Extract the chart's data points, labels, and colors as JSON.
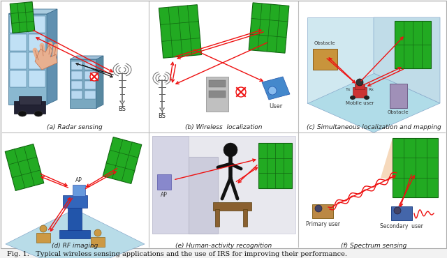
{
  "caption": "Fig. 1.   Typical wireless sensing applications and the use of IRS for improving their performance.",
  "subfig_labels": [
    "(a) Radar sensing",
    "(b) Wireless  localization",
    "(c) Simultaneous localization and mapping",
    "(d) RF imaging",
    "(e) Human-activity recognition",
    "(f) Spectrum sensing"
  ],
  "bg_color": "#f2f2f2",
  "white": "#ffffff",
  "irs_green": "#22aa22",
  "irs_dark": "#116611",
  "red": "#ee1111",
  "black": "#111111",
  "room_bg": "#c8e8f0",
  "label_fontsize": 6.5,
  "caption_fontsize": 7.0,
  "divider_color": "#bbbbbb"
}
